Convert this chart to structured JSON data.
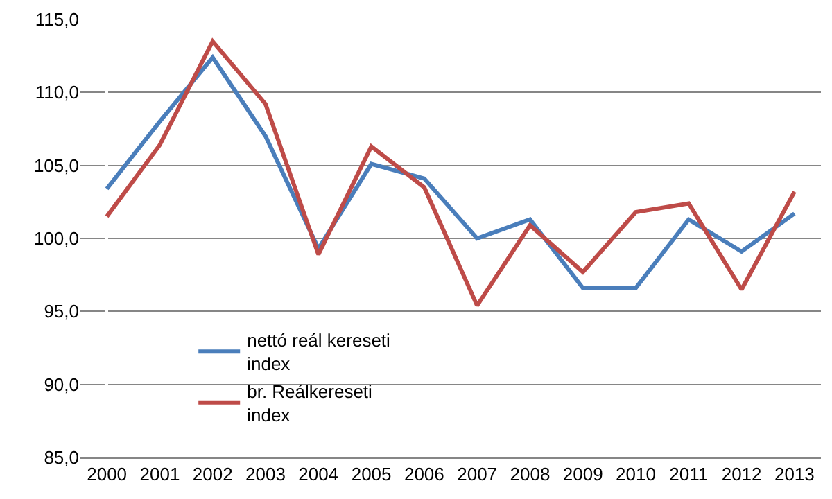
{
  "chart_data": {
    "type": "line",
    "categories": [
      "2000",
      "2001",
      "2002",
      "2003",
      "2004",
      "2005",
      "2006",
      "2007",
      "2008",
      "2009",
      "2010",
      "2011",
      "2012",
      "2013"
    ],
    "series": [
      {
        "name": "nettó reál kereseti index",
        "color": "#4a7ebb",
        "values": [
          103.4,
          108.0,
          112.4,
          107.0,
          99.3,
          105.1,
          104.1,
          100.0,
          101.3,
          96.6,
          96.6,
          101.3,
          99.1,
          101.7
        ]
      },
      {
        "name": "br. Reálkereseti index",
        "color": "#be4b48",
        "values": [
          101.5,
          106.4,
          113.5,
          109.2,
          98.9,
          106.3,
          103.5,
          95.4,
          100.9,
          97.7,
          101.8,
          102.4,
          96.5,
          103.2
        ]
      }
    ],
    "ylim": [
      85,
      115
    ],
    "yticks": [
      {
        "value": 85,
        "label": "85,0"
      },
      {
        "value": 90,
        "label": "90,0"
      },
      {
        "value": 95,
        "label": "95,0"
      },
      {
        "value": 100,
        "label": "100,0"
      },
      {
        "value": 105,
        "label": "105,0"
      },
      {
        "value": 110,
        "label": "110,0"
      },
      {
        "value": 115,
        "label": "115,0"
      }
    ],
    "grid": "y",
    "legend": "bottom left",
    "marker": "none",
    "line_style": "solid"
  }
}
